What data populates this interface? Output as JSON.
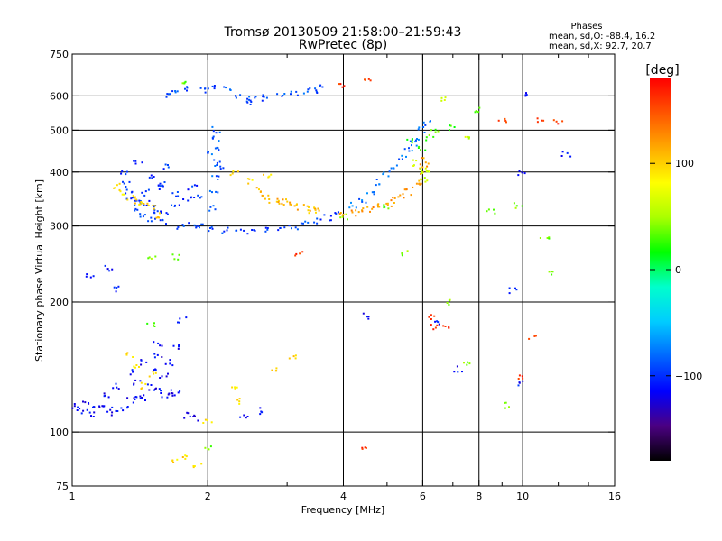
{
  "chart_data": {
    "type": "scatter",
    "title": "Tromsø 20130509 21:58:00–21:59:43",
    "subtitle": "RwPretec (8p)",
    "stats": {
      "heading": "Phases",
      "line1": "mean, sd,O:  -88.4, 16.2",
      "line2": "mean, sd,X:  92.7, 20.7"
    },
    "xlabel": "Frequency [MHz]",
    "ylabel": "Stationary phase Virtual Height [km]",
    "x_scale": "log2",
    "y_scale": "log",
    "xlim": [
      1,
      16
    ],
    "ylim": [
      75,
      750
    ],
    "x_ticks": [
      1,
      2,
      4,
      6,
      8,
      10,
      16
    ],
    "x_tick_labels": [
      "1",
      "2",
      "4",
      "6",
      "8",
      "10",
      "16"
    ],
    "x_minor_ticks": [
      3,
      5,
      7,
      9,
      12,
      14
    ],
    "x_grid": [
      2,
      4,
      6,
      8,
      10
    ],
    "y_ticks": [
      75,
      100,
      200,
      300,
      400,
      500,
      600,
      750
    ],
    "y_tick_labels": [
      "75",
      "100",
      "200",
      "300",
      "400",
      "500",
      "600",
      "750"
    ],
    "y_grid": [
      100,
      200,
      300,
      400,
      500,
      600
    ],
    "grid": true,
    "colorbar": {
      "label": "[deg]",
      "range": [
        -180,
        180
      ],
      "ticks": [
        100,
        0,
        -100
      ],
      "tick_labels": [
        "100",
        "0",
        "−100"
      ],
      "colors": [
        "#000000",
        "#4b0082",
        "#0000ff",
        "#0066ff",
        "#00ccff",
        "#00ffcc",
        "#00ff00",
        "#aaff00",
        "#ffff00",
        "#ffaa00",
        "#ff5500",
        "#ff0000"
      ]
    },
    "clusters": [
      {
        "phase": -95,
        "points": [
          [
            2.05,
            296
          ],
          [
            2.2,
            293
          ],
          [
            2.35,
            292
          ],
          [
            2.5,
            292
          ],
          [
            2.7,
            293
          ],
          [
            2.9,
            296
          ],
          [
            3.1,
            299
          ],
          [
            3.3,
            303
          ],
          [
            3.5,
            308
          ],
          [
            3.7,
            313
          ],
          [
            3.9,
            318
          ],
          [
            1.75,
            298
          ],
          [
            1.6,
            305
          ],
          [
            1.5,
            312
          ],
          [
            1.42,
            320
          ],
          [
            1.38,
            330
          ],
          [
            1.35,
            345
          ],
          [
            1.33,
            360
          ],
          [
            1.32,
            375
          ],
          [
            1.3,
            395
          ],
          [
            1.95,
            300
          ],
          [
            1.85,
            302
          ]
        ]
      },
      {
        "phase": -85,
        "points": [
          [
            2.05,
            330
          ],
          [
            2.06,
            360
          ],
          [
            2.08,
            390
          ],
          [
            2.09,
            420
          ],
          [
            2.1,
            450
          ],
          [
            2.1,
            480
          ],
          [
            2.08,
            500
          ],
          [
            2.12,
            410
          ],
          [
            2.04,
            440
          ]
        ]
      },
      {
        "phase": -90,
        "points": [
          [
            1.7,
            612
          ],
          [
            1.8,
            625
          ],
          [
            1.95,
            615
          ],
          [
            2.05,
            630
          ],
          [
            2.2,
            625
          ],
          [
            2.35,
            600
          ],
          [
            2.5,
            592
          ],
          [
            2.6,
            588
          ],
          [
            2.7,
            598
          ],
          [
            2.9,
            603
          ],
          [
            3.1,
            610
          ],
          [
            3.3,
            615
          ],
          [
            3.45,
            620
          ],
          [
            3.6,
            628
          ],
          [
            1.65,
            598
          ],
          [
            2.45,
            582
          ]
        ]
      },
      {
        "phase": -100,
        "points": [
          [
            1.4,
            345
          ],
          [
            1.45,
            340
          ],
          [
            1.5,
            330
          ],
          [
            1.55,
            325
          ],
          [
            1.6,
            320
          ],
          [
            1.7,
            332
          ],
          [
            1.8,
            345
          ],
          [
            1.9,
            352
          ],
          [
            1.55,
            370
          ],
          [
            1.7,
            355
          ],
          [
            1.6,
            375
          ],
          [
            1.45,
            358
          ],
          [
            1.85,
            368
          ],
          [
            1.5,
            390
          ],
          [
            1.4,
            420
          ],
          [
            1.6,
            410
          ]
        ]
      },
      {
        "phase": -115,
        "points": [
          [
            1.02,
            115
          ],
          [
            1.05,
            112
          ],
          [
            1.08,
            118
          ],
          [
            1.1,
            114
          ],
          [
            1.12,
            110
          ],
          [
            1.15,
            116
          ],
          [
            1.2,
            113
          ],
          [
            1.25,
            110
          ],
          [
            1.3,
            114
          ],
          [
            1.35,
            118
          ],
          [
            1.4,
            122
          ],
          [
            1.45,
            120
          ],
          [
            1.5,
            127
          ],
          [
            1.55,
            125
          ],
          [
            1.6,
            122
          ],
          [
            1.65,
            124
          ],
          [
            1.7,
            123
          ],
          [
            1.8,
            109
          ],
          [
            1.9,
            108
          ],
          [
            1.25,
            128
          ],
          [
            1.35,
            138
          ],
          [
            1.45,
            145
          ],
          [
            1.55,
            150
          ],
          [
            1.65,
            145
          ],
          [
            1.7,
            158
          ],
          [
            1.4,
            130
          ],
          [
            1.5,
            140
          ],
          [
            1.2,
            122
          ],
          [
            1.6,
            135
          ]
        ]
      },
      {
        "phase": 110,
        "points": [
          [
            3.0,
            340
          ],
          [
            3.1,
            335
          ],
          [
            3.2,
            332
          ],
          [
            3.3,
            328
          ],
          [
            3.4,
            326
          ],
          [
            3.5,
            325
          ],
          [
            2.6,
            362
          ],
          [
            2.7,
            352
          ],
          [
            2.8,
            345
          ],
          [
            2.9,
            338
          ]
        ]
      },
      {
        "phase": 120,
        "points": [
          [
            4.0,
            320
          ],
          [
            4.2,
            322
          ],
          [
            4.4,
            325
          ],
          [
            4.6,
            328
          ],
          [
            4.8,
            333
          ],
          [
            5.0,
            338
          ],
          [
            5.2,
            345
          ],
          [
            5.4,
            352
          ],
          [
            5.6,
            360
          ],
          [
            5.8,
            370
          ],
          [
            5.9,
            380
          ],
          [
            6.0,
            395
          ],
          [
            6.05,
            410
          ],
          [
            6.1,
            425
          ]
        ]
      },
      {
        "phase": -80,
        "points": [
          [
            4.4,
            345
          ],
          [
            4.6,
            360
          ],
          [
            4.8,
            378
          ],
          [
            5.0,
            395
          ],
          [
            5.2,
            412
          ],
          [
            5.4,
            430
          ],
          [
            5.6,
            450
          ],
          [
            5.8,
            475
          ],
          [
            6.0,
            500
          ],
          [
            6.1,
            520
          ],
          [
            4.2,
            335
          ],
          [
            5.7,
            465
          ]
        ]
      },
      {
        "phase": 95,
        "points": [
          [
            1.3,
            360
          ],
          [
            1.35,
            350
          ],
          [
            1.4,
            340
          ],
          [
            1.45,
            335
          ],
          [
            1.5,
            330
          ],
          [
            1.25,
            370
          ],
          [
            1.55,
            318
          ],
          [
            1.35,
            150
          ],
          [
            1.4,
            142
          ],
          [
            1.5,
            136
          ],
          [
            1.45,
            128
          ],
          [
            2.3,
            125
          ],
          [
            2.35,
            118
          ],
          [
            2.8,
            140
          ],
          [
            3.1,
            148
          ],
          [
            2.0,
            105
          ],
          [
            1.7,
            85
          ],
          [
            1.8,
            88
          ],
          [
            1.9,
            84
          ],
          [
            2.5,
            382
          ],
          [
            2.7,
            388
          ],
          [
            2.3,
            395
          ]
        ]
      },
      {
        "phase": 60,
        "points": [
          [
            6.0,
            385
          ],
          [
            5.9,
            400
          ],
          [
            5.8,
            420
          ],
          [
            6.2,
            405
          ],
          [
            6.6,
            590
          ],
          [
            7.5,
            480
          ]
        ]
      },
      {
        "phase": -110,
        "points": [
          [
            10.0,
            400
          ],
          [
            10.0,
            610
          ],
          [
            10.0,
            130
          ],
          [
            9.5,
            212
          ],
          [
            7.2,
            140
          ],
          [
            12.5,
            440
          ],
          [
            2.4,
            108
          ],
          [
            2.6,
            112
          ],
          [
            4.5,
            185
          ],
          [
            6.5,
            180
          ],
          [
            1.2,
            240
          ],
          [
            1.1,
            232
          ],
          [
            1.25,
            215
          ],
          [
            1.75,
            182
          ],
          [
            1.55,
            160
          ]
        ]
      },
      {
        "phase": 160,
        "points": [
          [
            6.3,
            185
          ],
          [
            6.4,
            175
          ],
          [
            6.8,
            175
          ],
          [
            10.5,
            165
          ],
          [
            10.0,
            135
          ],
          [
            4.4,
            92
          ],
          [
            3.2,
            260
          ],
          [
            11.0,
            530
          ],
          [
            12.0,
            520
          ],
          [
            9.0,
            530
          ],
          [
            4.5,
            655
          ],
          [
            4.0,
            635
          ]
        ]
      },
      {
        "phase": 40,
        "points": [
          [
            1.5,
            255
          ],
          [
            1.7,
            255
          ],
          [
            9.8,
            335
          ],
          [
            11.5,
            235
          ],
          [
            4.0,
            315
          ],
          [
            2.0,
            92
          ],
          [
            9.3,
            115
          ],
          [
            7.5,
            145
          ],
          [
            6.8,
            200
          ],
          [
            5.5,
            260
          ]
        ]
      },
      {
        "phase": 30,
        "points": [
          [
            6.2,
            480
          ],
          [
            6.4,
            500
          ],
          [
            5.6,
            470
          ],
          [
            6.0,
            455
          ],
          [
            11.2,
            280
          ],
          [
            5.0,
            330
          ],
          [
            8.5,
            325
          ],
          [
            8.0,
            555
          ],
          [
            7.0,
            505
          ],
          [
            1.8,
            650
          ],
          [
            1.5,
            178
          ]
        ]
      }
    ]
  }
}
